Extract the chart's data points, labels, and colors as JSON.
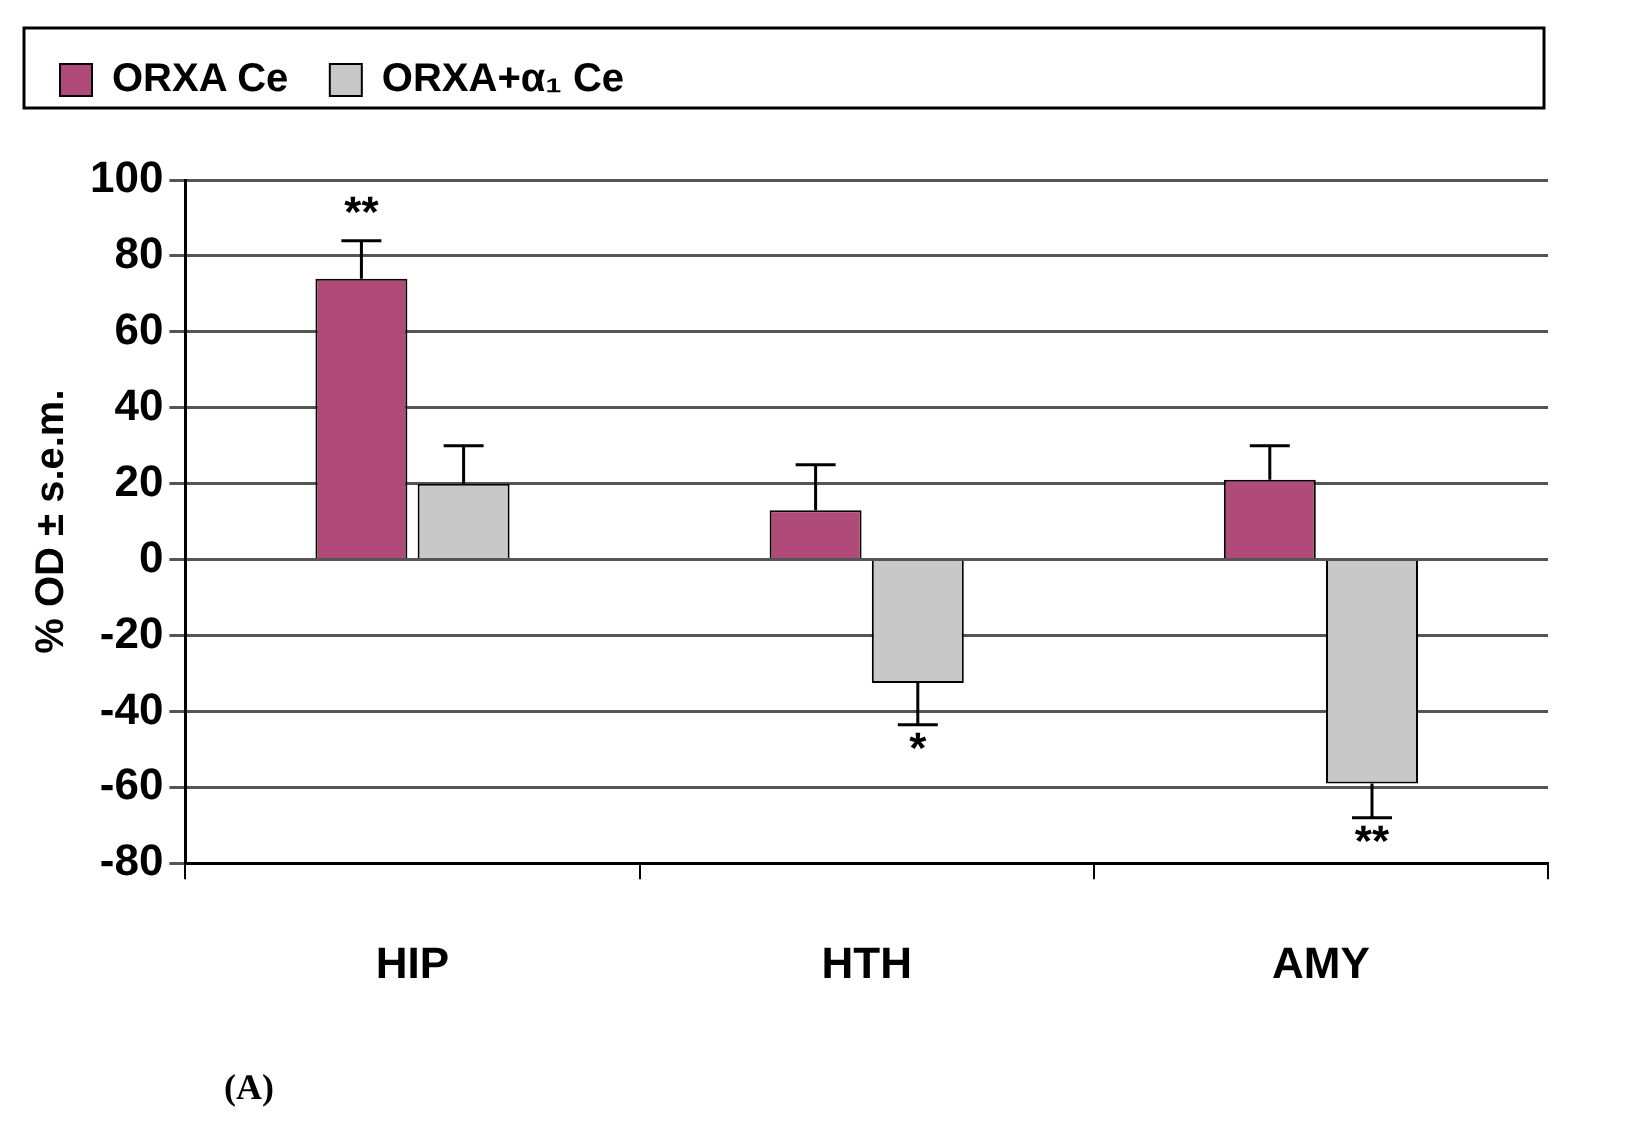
{
  "chart_data": {
    "type": "bar",
    "ylabel": "% OD ± s.e.m.",
    "categories": [
      "HIP",
      "HTH",
      "AMY"
    ],
    "series": [
      {
        "name": "ORXA Ce",
        "color": "#b04a78",
        "values": [
          74,
          13,
          21
        ],
        "errors": [
          [
            74,
            84
          ],
          [
            13,
            25
          ],
          [
            21,
            30
          ]
        ]
      },
      {
        "name": "ORXA+α₁ Ce",
        "color": "#c8c8c8",
        "values": [
          20,
          -32.5,
          -59
        ],
        "errors": [
          [
            20,
            30
          ],
          [
            -43.5,
            -32.5
          ],
          [
            -68,
            -59
          ]
        ]
      }
    ],
    "ylim": [
      -80,
      100
    ],
    "yticks": [
      -80,
      -60,
      -40,
      -20,
      0,
      20,
      40,
      60,
      80,
      100
    ],
    "grid": "y",
    "legend": "top",
    "annotations": [
      {
        "text": "**",
        "x": "HIP",
        "y": 74
      },
      {
        "text": "*",
        "x": "HTH",
        "y": -32.5
      },
      {
        "text": "**",
        "x": "AMY",
        "y": -59
      },
      "(A)"
    ]
  }
}
